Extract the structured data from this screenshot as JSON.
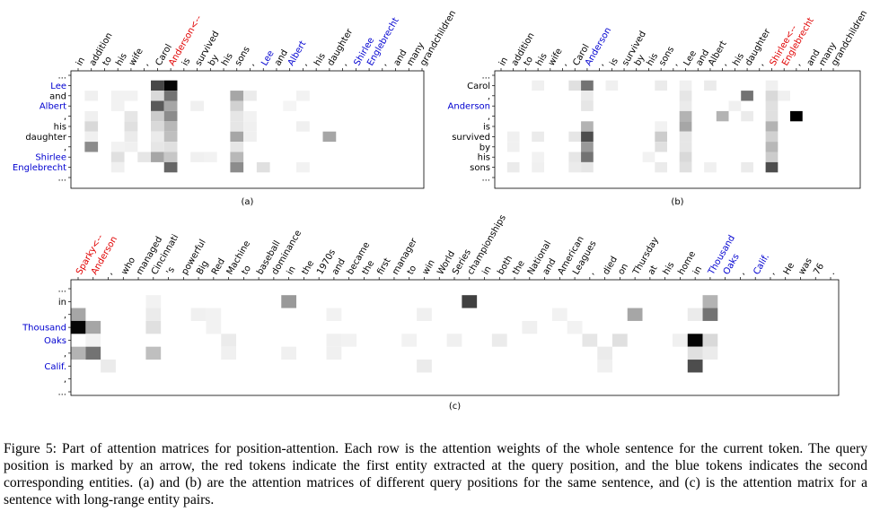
{
  "figure": {
    "panels": [
      {
        "label": "(a)",
        "columns": [
          "in",
          "addition",
          "to",
          "his",
          "wife",
          ",",
          "Carol",
          "Anderson<--",
          "is",
          "survived",
          "by",
          "his",
          "sons",
          ",",
          "Lee",
          "and",
          "Albert",
          ",",
          "his",
          "daughter",
          ",",
          "Shirlee",
          "Englebrecht",
          ",",
          "and",
          "many",
          "grandchildren"
        ],
        "column_colors": [
          "k",
          "k",
          "k",
          "k",
          "k",
          "k",
          "k",
          "r",
          "k",
          "k",
          "k",
          "k",
          "k",
          "k",
          "b",
          "k",
          "b",
          "k",
          "k",
          "k",
          "k",
          "b",
          "b",
          "k",
          "k",
          "k",
          "k"
        ],
        "rows": [
          "...",
          "Lee",
          "and",
          "Albert",
          ",",
          "his",
          "daughter",
          ",",
          "Shirlee",
          "Englebrecht",
          "..."
        ],
        "row_colors": [
          "k",
          "b",
          "k",
          "b",
          "k",
          "k",
          "k",
          "k",
          "b",
          "b",
          "k"
        ]
      },
      {
        "label": "(b)",
        "columns": [
          "in",
          "addition",
          "to",
          "his",
          "wife",
          ",",
          "Carol",
          "Anderson",
          ",",
          "is",
          "survived",
          "by",
          "his",
          "sons",
          ",",
          "Lee",
          "and",
          "Albert",
          ",",
          "his",
          "daughter",
          ",",
          "Shirlee<--",
          "Englebrecht",
          ",",
          "and",
          "many",
          "grandchildren"
        ],
        "column_colors": [
          "k",
          "k",
          "k",
          "k",
          "k",
          "k",
          "k",
          "b",
          "k",
          "k",
          "k",
          "k",
          "k",
          "k",
          "k",
          "k",
          "k",
          "k",
          "k",
          "k",
          "k",
          "k",
          "r",
          "r",
          "k",
          "k",
          "k",
          "k"
        ],
        "rows": [
          "...",
          "Carol",
          ",",
          "Anderson",
          ",",
          "is",
          "survived",
          "by",
          "his",
          "sons",
          "..."
        ],
        "row_colors": [
          "k",
          "k",
          "k",
          "b",
          "k",
          "k",
          "k",
          "k",
          "k",
          "k",
          "k"
        ]
      },
      {
        "label": "(c)",
        "columns": [
          "Sparky<--",
          "Anderson",
          ",",
          "who",
          "managed",
          "Cincinnati",
          "'s",
          "powerful",
          "Big",
          "Red",
          "Machine",
          "to",
          "baseball",
          "dominance",
          "in",
          "the",
          "1970s",
          "and",
          "became",
          "the",
          "first",
          "manager",
          "to",
          "win",
          "World",
          "Series",
          "championships",
          "in",
          "both",
          "the",
          "National",
          "and",
          "American",
          "Leagues",
          ",",
          "died",
          "on",
          "Thursday",
          "at",
          "his",
          "home",
          "in",
          "Thousand",
          "Oaks",
          ",",
          "Calif.",
          ",",
          "He",
          "was",
          "76",
          "."
        ],
        "column_colors": [
          "r",
          "r",
          "k",
          "k",
          "k",
          "k",
          "k",
          "k",
          "k",
          "k",
          "k",
          "k",
          "k",
          "k",
          "k",
          "k",
          "k",
          "k",
          "k",
          "k",
          "k",
          "k",
          "k",
          "k",
          "k",
          "k",
          "k",
          "k",
          "k",
          "k",
          "k",
          "k",
          "k",
          "k",
          "k",
          "k",
          "k",
          "k",
          "k",
          "k",
          "k",
          "k",
          "b",
          "b",
          "k",
          "b",
          "k",
          "k",
          "k",
          "k",
          "k"
        ],
        "rows": [
          "...",
          "in",
          ",",
          "Thousand",
          "Oaks",
          ",",
          "Calif.",
          ",",
          "..."
        ],
        "row_colors": [
          "k",
          "k",
          "k",
          "b",
          "b",
          "k",
          "b",
          "k",
          "k"
        ]
      }
    ],
    "caption": "Figure 5: Part of attention matrices for position-attention. Each row is the attention weights of the whole sentence for the current token. The query position is marked by an arrow, the red tokens indicate the first entity extracted at the query position, and the blue tokens indicates the second corresponding entities. (a) and (b) are the attention matrices of different query positions for the same sentence, and (c) is the attention matrix for a sentence with long-range entity pairs."
  },
  "chart_data": [
    {
      "type": "heatmap",
      "title": "(a)",
      "weights_note": "attention weight 0..1 (darker = higher); cells listed as [row_index, column_index, weight]",
      "cells": [
        [
          0,
          6,
          0.72
        ],
        [
          0,
          7,
          0.98
        ],
        [
          1,
          1,
          0.06
        ],
        [
          1,
          3,
          0.05
        ],
        [
          1,
          4,
          0.05
        ],
        [
          1,
          6,
          0.15
        ],
        [
          1,
          7,
          0.55
        ],
        [
          1,
          12,
          0.35
        ],
        [
          1,
          13,
          0.08
        ],
        [
          1,
          17,
          0.05
        ],
        [
          2,
          3,
          0.05
        ],
        [
          2,
          6,
          0.65
        ],
        [
          2,
          7,
          0.35
        ],
        [
          2,
          9,
          0.06
        ],
        [
          2,
          12,
          0.18
        ],
        [
          2,
          16,
          0.04
        ],
        [
          3,
          1,
          0.06
        ],
        [
          3,
          4,
          0.1
        ],
        [
          3,
          6,
          0.2
        ],
        [
          3,
          7,
          0.45
        ],
        [
          3,
          12,
          0.1
        ],
        [
          3,
          13,
          0.05
        ],
        [
          4,
          1,
          0.15
        ],
        [
          4,
          4,
          0.12
        ],
        [
          4,
          6,
          0.15
        ],
        [
          4,
          7,
          0.28
        ],
        [
          4,
          12,
          0.1
        ],
        [
          4,
          13,
          0.06
        ],
        [
          4,
          17,
          0.06
        ],
        [
          5,
          1,
          0.06
        ],
        [
          5,
          4,
          0.08
        ],
        [
          5,
          6,
          0.08
        ],
        [
          5,
          7,
          0.25
        ],
        [
          5,
          12,
          0.35
        ],
        [
          5,
          13,
          0.06
        ],
        [
          5,
          19,
          0.35
        ],
        [
          6,
          1,
          0.45
        ],
        [
          6,
          3,
          0.05
        ],
        [
          6,
          4,
          0.06
        ],
        [
          6,
          6,
          0.1
        ],
        [
          6,
          7,
          0.12
        ],
        [
          6,
          12,
          0.1
        ],
        [
          7,
          3,
          0.12
        ],
        [
          7,
          5,
          0.1
        ],
        [
          7,
          6,
          0.35
        ],
        [
          7,
          7,
          0.22
        ],
        [
          7,
          9,
          0.06
        ],
        [
          7,
          10,
          0.05
        ],
        [
          7,
          12,
          0.28
        ],
        [
          8,
          3,
          0.06
        ],
        [
          8,
          7,
          0.6
        ],
        [
          8,
          12,
          0.45
        ],
        [
          8,
          14,
          0.12
        ],
        [
          8,
          17,
          0.05
        ]
      ]
    },
    {
      "type": "heatmap",
      "title": "(b)",
      "weights_note": "attention weight 0..1 (darker = higher); cells listed as [row_index, column_index, weight]",
      "cells": [
        [
          0,
          3,
          0.06
        ],
        [
          0,
          6,
          0.12
        ],
        [
          0,
          7,
          0.55
        ],
        [
          0,
          9,
          0.06
        ],
        [
          0,
          13,
          0.08
        ],
        [
          0,
          15,
          0.06
        ],
        [
          0,
          17,
          0.08
        ],
        [
          0,
          22,
          0.06
        ],
        [
          1,
          7,
          0.08
        ],
        [
          1,
          15,
          0.1
        ],
        [
          1,
          20,
          0.55
        ],
        [
          1,
          22,
          0.15
        ],
        [
          1,
          23,
          0.06
        ],
        [
          2,
          7,
          0.1
        ],
        [
          2,
          15,
          0.08
        ],
        [
          2,
          19,
          0.06
        ],
        [
          2,
          22,
          0.12
        ],
        [
          3,
          15,
          0.3
        ],
        [
          3,
          18,
          0.3
        ],
        [
          3,
          20,
          0.08
        ],
        [
          3,
          22,
          0.12
        ],
        [
          3,
          24,
          1.0
        ],
        [
          4,
          7,
          0.3
        ],
        [
          4,
          13,
          0.05
        ],
        [
          4,
          15,
          0.35
        ],
        [
          4,
          22,
          0.3
        ],
        [
          5,
          1,
          0.06
        ],
        [
          5,
          3,
          0.08
        ],
        [
          5,
          6,
          0.1
        ],
        [
          5,
          7,
          0.7
        ],
        [
          5,
          13,
          0.2
        ],
        [
          5,
          15,
          0.1
        ],
        [
          5,
          22,
          0.18
        ],
        [
          6,
          1,
          0.06
        ],
        [
          6,
          7,
          0.4
        ],
        [
          6,
          13,
          0.12
        ],
        [
          6,
          15,
          0.1
        ],
        [
          6,
          22,
          0.28
        ],
        [
          7,
          3,
          0.05
        ],
        [
          7,
          6,
          0.1
        ],
        [
          7,
          7,
          0.55
        ],
        [
          7,
          12,
          0.05
        ],
        [
          7,
          15,
          0.15
        ],
        [
          7,
          22,
          0.2
        ],
        [
          8,
          1,
          0.08
        ],
        [
          8,
          3,
          0.06
        ],
        [
          8,
          6,
          0.08
        ],
        [
          8,
          7,
          0.1
        ],
        [
          8,
          13,
          0.08
        ],
        [
          8,
          15,
          0.12
        ],
        [
          8,
          17,
          0.06
        ],
        [
          8,
          20,
          0.08
        ],
        [
          8,
          22,
          0.7
        ]
      ]
    },
    {
      "type": "heatmap",
      "title": "(c)",
      "weights_note": "attention weight 0..1 (darker = higher); cells listed as [row_index, column_index, weight]",
      "cells": [
        [
          0,
          5,
          0.05
        ],
        [
          0,
          14,
          0.4
        ],
        [
          0,
          26,
          0.75
        ],
        [
          0,
          42,
          0.3
        ],
        [
          1,
          0,
          0.35
        ],
        [
          1,
          5,
          0.08
        ],
        [
          1,
          8,
          0.06
        ],
        [
          1,
          9,
          0.05
        ],
        [
          1,
          17,
          0.05
        ],
        [
          1,
          23,
          0.06
        ],
        [
          1,
          32,
          0.05
        ],
        [
          1,
          37,
          0.35
        ],
        [
          1,
          41,
          0.08
        ],
        [
          1,
          42,
          0.55
        ],
        [
          2,
          0,
          0.98
        ],
        [
          2,
          1,
          0.35
        ],
        [
          2,
          5,
          0.12
        ],
        [
          2,
          9,
          0.05
        ],
        [
          2,
          30,
          0.06
        ],
        [
          2,
          33,
          0.05
        ],
        [
          3,
          1,
          0.05
        ],
        [
          3,
          10,
          0.08
        ],
        [
          3,
          17,
          0.06
        ],
        [
          3,
          18,
          0.05
        ],
        [
          3,
          22,
          0.05
        ],
        [
          3,
          25,
          0.06
        ],
        [
          3,
          28,
          0.08
        ],
        [
          3,
          34,
          0.1
        ],
        [
          3,
          36,
          0.12
        ],
        [
          3,
          40,
          0.06
        ],
        [
          3,
          41,
          0.98
        ],
        [
          3,
          42,
          0.15
        ],
        [
          4,
          0,
          0.3
        ],
        [
          4,
          1,
          0.55
        ],
        [
          4,
          5,
          0.25
        ],
        [
          4,
          10,
          0.06
        ],
        [
          4,
          14,
          0.06
        ],
        [
          4,
          17,
          0.06
        ],
        [
          4,
          35,
          0.08
        ],
        [
          4,
          41,
          0.12
        ],
        [
          4,
          42,
          0.08
        ],
        [
          5,
          2,
          0.08
        ],
        [
          5,
          23,
          0.08
        ],
        [
          5,
          35,
          0.06
        ],
        [
          5,
          41,
          0.7
        ]
      ]
    }
  ]
}
